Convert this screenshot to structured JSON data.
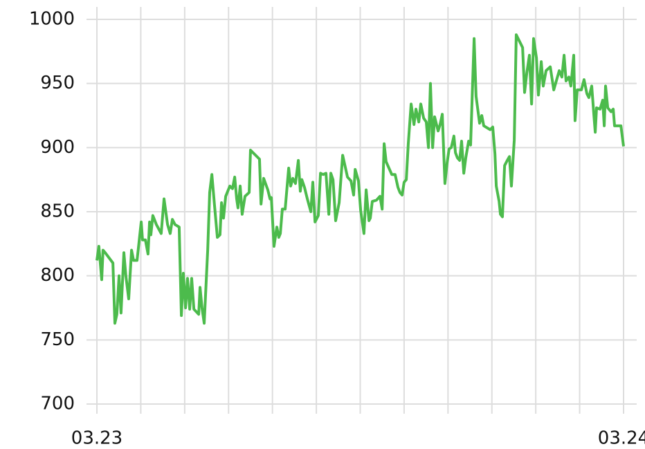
{
  "chart_data": {
    "type": "line",
    "x": [
      0,
      0.09,
      0.22,
      0.28,
      0.38,
      0.73,
      0.82,
      0.91,
      1.01,
      1.1,
      1.23,
      1.32,
      1.45,
      1.58,
      1.67,
      1.83,
      2.02,
      2.08,
      2.21,
      2.33,
      2.4,
      2.46,
      2.55,
      2.71,
      2.93,
      3.06,
      3.22,
      3.34,
      3.44,
      3.56,
      3.75,
      3.85,
      3.94,
      4.04,
      4.13,
      4.23,
      4.32,
      4.42,
      4.64,
      4.7,
      4.79,
      4.89,
      5.05,
      5.14,
      5.24,
      5.36,
      5.49,
      5.61,
      5.68,
      5.77,
      5.87,
      6.06,
      6.18,
      6.28,
      6.37,
      6.43,
      6.53,
      6.62,
      6.75,
      6.94,
      7.0,
      7.41,
      7.48,
      7.6,
      7.79,
      7.89,
      7.95,
      8.07,
      8.2,
      8.29,
      8.36,
      8.45,
      8.58,
      8.74,
      8.83,
      8.93,
      9.05,
      9.18,
      9.27,
      9.34,
      9.46,
      9.59,
      9.75,
      9.84,
      9.94,
      10.09,
      10.19,
      10.31,
      10.44,
      10.57,
      10.66,
      10.76,
      10.88,
      11.04,
      11.2,
      11.42,
      11.58,
      11.7,
      11.77,
      11.92,
      12.02,
      12.17,
      12.27,
      12.4,
      12.46,
      12.55,
      12.74,
      12.9,
      13.0,
      13.09,
      13.18,
      13.44,
      13.59,
      13.72,
      13.81,
      13.91,
      14.0,
      14.1,
      14.19,
      14.32,
      14.45,
      14.54,
      14.67,
      14.76,
      14.89,
      15.01,
      15.11,
      15.2,
      15.3,
      15.39,
      15.55,
      15.64,
      15.74,
      15.86,
      15.96,
      16.05,
      16.15,
      16.27,
      16.34,
      16.43,
      16.53,
      16.62,
      16.72,
      16.81,
      16.94,
      17.03,
      17.19,
      17.28,
      17.44,
      17.54,
      17.63,
      17.92,
      18.04,
      18.14,
      18.2,
      18.33,
      18.39,
      18.48,
      18.58,
      18.7,
      18.8,
      18.89,
      19.02,
      19.11,
      19.4,
      19.49,
      19.59,
      19.71,
      19.81,
      19.9,
      20.03,
      20.12,
      20.25,
      20.34,
      20.47,
      20.66,
      20.82,
      21.07,
      21.19,
      21.29,
      21.38,
      21.51,
      21.6,
      21.73,
      21.79,
      21.89,
      22.08,
      22.2,
      22.33,
      22.42,
      22.55,
      22.65,
      22.71,
      22.77,
      22.93,
      23.05,
      23.12,
      23.18,
      23.28,
      23.43,
      23.53,
      23.59,
      23.88,
      24
    ],
    "series": [
      {
        "color": "#4cbb4c",
        "values": [
          812,
          823,
          797,
          820,
          818,
          810,
          763,
          770,
          800,
          771,
          818,
          800,
          782,
          820,
          812,
          812,
          842,
          828,
          828,
          817,
          842,
          832,
          847,
          840,
          833,
          860,
          840,
          833,
          844,
          840,
          838,
          769,
          802,
          775,
          798,
          774,
          798,
          774,
          770,
          791,
          775,
          763,
          820,
          865,
          879,
          855,
          830,
          832,
          857,
          845,
          862,
          870,
          868,
          877,
          860,
          853,
          870,
          848,
          862,
          865,
          898,
          891,
          856,
          876,
          867,
          860,
          861,
          823,
          838,
          830,
          833,
          852,
          852,
          884,
          870,
          876,
          872,
          890,
          866,
          875,
          869,
          860,
          850,
          873,
          842,
          847,
          880,
          879,
          880,
          848,
          880,
          875,
          843,
          857,
          894,
          877,
          874,
          863,
          883,
          874,
          851,
          833,
          867,
          843,
          845,
          858,
          859,
          862,
          852,
          903,
          889,
          879,
          879,
          869,
          865,
          863,
          873,
          875,
          903,
          934,
          918,
          930,
          920,
          934,
          923,
          920,
          900,
          950,
          900,
          924,
          913,
          918,
          926,
          872,
          888,
          899,
          900,
          909,
          896,
          892,
          890,
          905,
          880,
          892,
          905,
          902,
          985,
          940,
          919,
          925,
          917,
          914,
          916,
          895,
          870,
          858,
          848,
          846,
          886,
          890,
          893,
          870,
          906,
          988,
          978,
          943,
          958,
          972,
          934,
          985,
          970,
          941,
          967,
          948,
          960,
          963,
          945,
          960,
          955,
          972,
          952,
          955,
          948,
          972,
          921,
          945,
          945,
          953,
          942,
          939,
          948,
          925,
          912,
          931,
          930,
          937,
          917,
          948,
          931,
          928,
          930,
          917,
          917,
          901
        ]
      }
    ],
    "xlim": [
      0,
      24
    ],
    "xticks": [
      0,
      2,
      4,
      6,
      8,
      10,
      12,
      14,
      16,
      18,
      20,
      22,
      24
    ],
    "xlabels": [
      {
        "value": 0,
        "label": "03.23"
      },
      {
        "value": 24,
        "label": "03.24"
      }
    ],
    "ylim": [
      700,
      1000
    ],
    "yticks": [
      700,
      750,
      800,
      850,
      900,
      950,
      1000
    ],
    "grid": true
  }
}
